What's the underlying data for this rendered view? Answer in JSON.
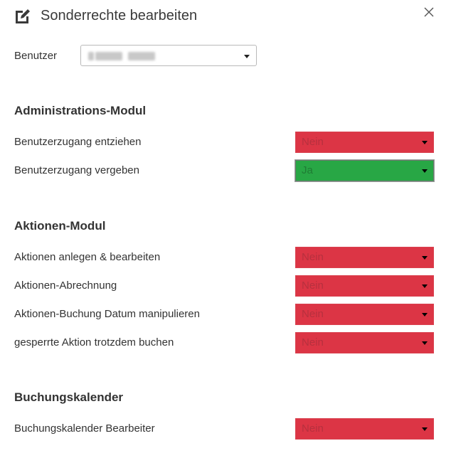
{
  "dialog": {
    "title": "Sonderrechte bearbeiten",
    "title_icon": "edit-square-icon",
    "close_icon": "close-icon"
  },
  "user": {
    "label": "Benutzer",
    "value_blurred": true
  },
  "sections": [
    {
      "title": "Administrations-Modul",
      "rows": [
        {
          "label": "Benutzerzugang entziehen",
          "value": "Nein"
        },
        {
          "label": "Benutzerzugang vergeben",
          "value": "Ja"
        }
      ]
    },
    {
      "title": "Aktionen-Modul",
      "rows": [
        {
          "label": "Aktionen anlegen & bearbeiten",
          "value": "Nein"
        },
        {
          "label": "Aktionen-Abrechnung",
          "value": "Nein"
        },
        {
          "label": "Aktionen-Buchung Datum manipulieren",
          "value": "Nein"
        },
        {
          "label": "gesperrte Aktion trotzdem buchen",
          "value": "Nein"
        }
      ]
    },
    {
      "title": "Buchungskalender",
      "rows": [
        {
          "label": "Buchungskalender Bearbeiter",
          "value": "Nein"
        }
      ]
    }
  ],
  "colors": {
    "no": "#dc3545",
    "yes": "#28a745"
  }
}
